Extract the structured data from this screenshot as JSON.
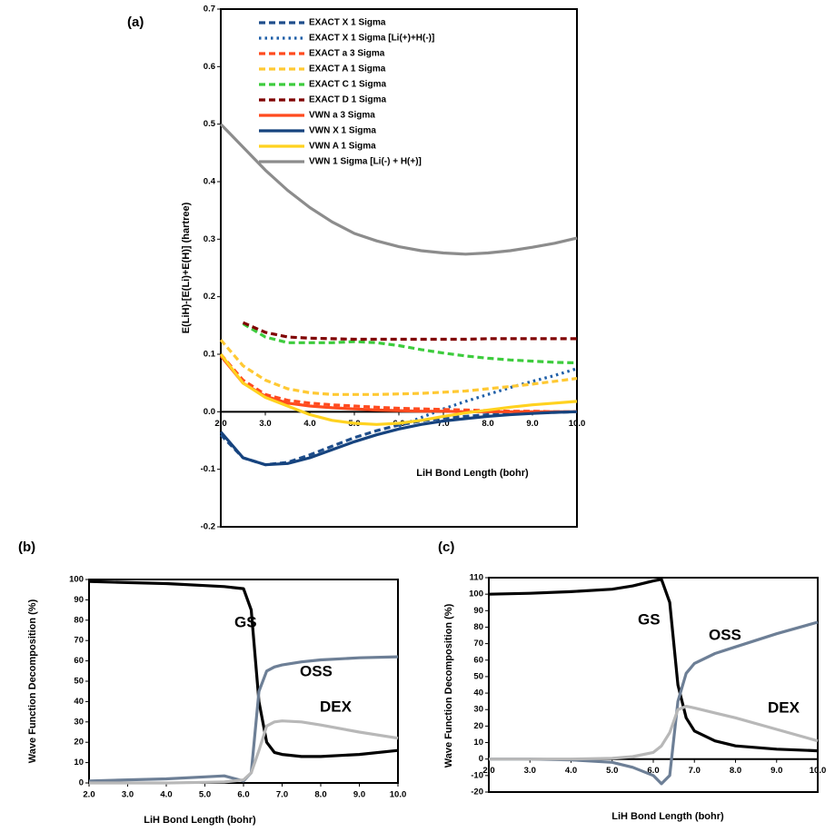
{
  "chart_data": [
    {
      "type": "line",
      "title": "(a)",
      "y_label": "E(LiH)-[E(Li)+E(H)] (hartree)",
      "x_label": "LiH Bond Length (bohr)",
      "x": [
        2.0,
        2.5,
        3.0,
        3.5,
        4.0,
        4.5,
        5.0,
        5.5,
        6.0,
        6.5,
        7.0,
        7.5,
        8.0,
        8.5,
        9.0,
        9.5,
        10.0
      ],
      "xlim": [
        2,
        10
      ],
      "xticks": [
        {
          "value": 2,
          "label": "2.0"
        },
        {
          "value": 3,
          "label": "3.0"
        },
        {
          "value": 4,
          "label": "4.0"
        },
        {
          "value": 5,
          "label": "5.0"
        },
        {
          "value": 6,
          "label": "6.0"
        },
        {
          "value": 7,
          "label": "7.0"
        },
        {
          "value": 8,
          "label": "8.0"
        },
        {
          "value": 9,
          "label": "9.0"
        },
        {
          "value": 10,
          "label": "10.0"
        }
      ],
      "ylim": [
        -0.2,
        0.7
      ],
      "yticks": [
        0.7,
        0.6,
        0.5,
        0.4,
        0.3,
        0.2,
        0.1,
        {
          "value": 0,
          "label": "0.0"
        },
        -0.1,
        -0.2
      ],
      "legend": "upper left",
      "series": [
        {
          "name": "EXACT X 1 Sigma",
          "color": "#1f4e8c",
          "style": "dashed",
          "values": [
            -0.04,
            -0.08,
            -0.092,
            -0.088,
            -0.075,
            -0.06,
            -0.045,
            -0.033,
            -0.023,
            -0.016,
            -0.011,
            -0.008,
            -0.005,
            -0.003,
            -0.002,
            -0.001,
            0
          ]
        },
        {
          "name": "EXACT X 1 Sigma  [Li(+)+H(-)]",
          "color": "#1f5fa8",
          "style": "dotted",
          "values": [
            null,
            null,
            null,
            null,
            null,
            null,
            null,
            null,
            -0.025,
            -0.01,
            0.005,
            0.018,
            0.03,
            0.042,
            0.053,
            0.063,
            0.075
          ]
        },
        {
          "name": "EXACT a 3 Sigma",
          "color": "#ff4b1f",
          "style": "dashed",
          "values": [
            0.1,
            0.055,
            0.03,
            0.02,
            0.015,
            0.012,
            0.01,
            0.008,
            0.006,
            0.005,
            0.004,
            0.003,
            0.002,
            0.001,
            0.001,
            0,
            0
          ]
        },
        {
          "name": "EXACT A 1 Sigma",
          "color": "#ffc933",
          "style": "dashed",
          "values": [
            0.125,
            0.08,
            0.055,
            0.04,
            0.033,
            0.03,
            0.03,
            0.03,
            0.031,
            0.032,
            0.034,
            0.036,
            0.04,
            0.044,
            0.048,
            0.053,
            0.058
          ]
        },
        {
          "name": "EXACT C 1 Sigma",
          "color": "#3dcc3d",
          "style": "dashed",
          "values": [
            null,
            0.153,
            0.13,
            0.12,
            0.12,
            0.12,
            0.122,
            0.12,
            0.115,
            0.108,
            0.102,
            0.097,
            0.093,
            0.09,
            0.088,
            0.086,
            0.085
          ]
        },
        {
          "name": "EXACT D 1 Sigma",
          "color": "#800000",
          "style": "dashed",
          "values": [
            null,
            0.155,
            0.138,
            0.13,
            0.128,
            0.127,
            0.126,
            0.126,
            0.126,
            0.126,
            0.126,
            0.126,
            0.127,
            0.127,
            0.127,
            0.127,
            0.127
          ]
        },
        {
          "name": "VWN a 3 Sigma",
          "color": "#ff4b1f",
          "style": "solid",
          "values": [
            0.097,
            0.05,
            0.027,
            0.015,
            0.01,
            0.007,
            0.005,
            0.003,
            0.002,
            0.001,
            0.001,
            0,
            0,
            0,
            0,
            0,
            0
          ]
        },
        {
          "name": "VWN X 1 Sigma",
          "color": "#16437e",
          "style": "solid",
          "values": [
            -0.035,
            -0.08,
            -0.092,
            -0.09,
            -0.08,
            -0.066,
            -0.052,
            -0.04,
            -0.03,
            -0.022,
            -0.016,
            -0.012,
            -0.008,
            -0.005,
            -0.003,
            -0.001,
            0
          ]
        },
        {
          "name": "VWN A 1 Sigma",
          "color": "#ffd21f",
          "style": "solid",
          "values": [
            0.1,
            0.05,
            0.025,
            0.01,
            -0.005,
            -0.015,
            -0.02,
            -0.022,
            -0.02,
            -0.015,
            -0.008,
            -0.002,
            0.003,
            0.008,
            0.012,
            0.015,
            0.018
          ]
        },
        {
          "name": "VWN 1 Sigma [Li(-) + H(+)]",
          "color": "#8c8c8c",
          "style": "solid",
          "values": [
            0.5,
            0.46,
            0.42,
            0.385,
            0.355,
            0.33,
            0.31,
            0.297,
            0.287,
            0.28,
            0.276,
            0.274,
            0.276,
            0.28,
            0.286,
            0.293,
            0.302
          ]
        }
      ]
    },
    {
      "type": "line",
      "title": "(b)",
      "y_label": "Wave Function Decomposition (%)",
      "x_label": "LiH Bond Length (bohr)",
      "x": [
        2.0,
        3.0,
        4.0,
        5.0,
        5.5,
        6.0,
        6.2,
        6.4,
        6.6,
        6.8,
        7.0,
        7.5,
        8.0,
        9.0,
        10.0
      ],
      "xlim": [
        2,
        10
      ],
      "xticks": [
        {
          "value": 2,
          "label": "2.0"
        },
        {
          "value": 3,
          "label": "3.0"
        },
        {
          "value": 4,
          "label": "4.0"
        },
        {
          "value": 5,
          "label": "5.0"
        },
        {
          "value": 6,
          "label": "6.0"
        },
        {
          "value": 7,
          "label": "7.0"
        },
        {
          "value": 8,
          "label": "8.0"
        },
        {
          "value": 9,
          "label": "9.0"
        },
        {
          "value": 10,
          "label": "10.0"
        }
      ],
      "ylim": [
        0,
        100
      ],
      "yticks": [
        100,
        90,
        80,
        70,
        60,
        50,
        40,
        30,
        20,
        10,
        0
      ],
      "annotations": [
        "GS",
        "OSS",
        "DEX"
      ],
      "series": [
        {
          "name": "GS",
          "color": "#000000",
          "style": "solid",
          "values": [
            99,
            98.5,
            98,
            97,
            96.5,
            95.5,
            85,
            40,
            20,
            15,
            14,
            13,
            13,
            14,
            16
          ]
        },
        {
          "name": "OSS",
          "color": "#6d7f96",
          "style": "solid",
          "values": [
            1,
            1.5,
            2,
            3,
            3.5,
            1,
            5,
            45,
            55,
            57,
            58,
            59.5,
            60.5,
            61.5,
            62
          ]
        },
        {
          "name": "DEX",
          "color": "#b8b8b8",
          "style": "solid",
          "values": [
            0,
            0,
            0,
            0.3,
            0.5,
            1.5,
            5,
            16,
            28,
            30,
            30.5,
            30,
            28.5,
            25,
            22
          ]
        }
      ]
    },
    {
      "type": "line",
      "title": "(c)",
      "y_label": "Wave Function Decomposition (%)",
      "x_label": "LiH Bond Length (bohr)",
      "x": [
        2.0,
        3.0,
        4.0,
        5.0,
        5.5,
        6.0,
        6.2,
        6.4,
        6.6,
        6.8,
        7.0,
        7.5,
        8.0,
        9.0,
        10.0
      ],
      "xlim": [
        2,
        10
      ],
      "xticks": [
        {
          "value": 2,
          "label": "2.0"
        },
        {
          "value": 3,
          "label": "3.0"
        },
        {
          "value": 4,
          "label": "4.0"
        },
        {
          "value": 5,
          "label": "5.0"
        },
        {
          "value": 6,
          "label": "6.0"
        },
        {
          "value": 7,
          "label": "7.0"
        },
        {
          "value": 8,
          "label": "8.0"
        },
        {
          "value": 9,
          "label": "9.0"
        },
        {
          "value": 10,
          "label": "10.0"
        }
      ],
      "ylim": [
        -20,
        110
      ],
      "yticks": [
        110,
        100,
        90,
        80,
        70,
        60,
        50,
        40,
        30,
        20,
        10,
        0,
        -10,
        -20
      ],
      "annotations": [
        "GS",
        "OSS",
        "DEX"
      ],
      "series": [
        {
          "name": "GS",
          "color": "#000000",
          "style": "solid",
          "values": [
            100,
            100.5,
            101.5,
            103,
            105,
            108,
            109,
            95,
            45,
            25,
            17,
            11,
            8,
            6,
            5
          ]
        },
        {
          "name": "OSS",
          "color": "#6d7f96",
          "style": "solid",
          "values": [
            0,
            0,
            -0.5,
            -2,
            -5,
            -10,
            -15,
            -10,
            35,
            52,
            58,
            64,
            68,
            76,
            83
          ]
        },
        {
          "name": "DEX",
          "color": "#b8b8b8",
          "style": "solid",
          "values": [
            0,
            0,
            0,
            0.5,
            1.5,
            4,
            8,
            16,
            30,
            32,
            31,
            28,
            25,
            18,
            11
          ]
        }
      ]
    }
  ]
}
